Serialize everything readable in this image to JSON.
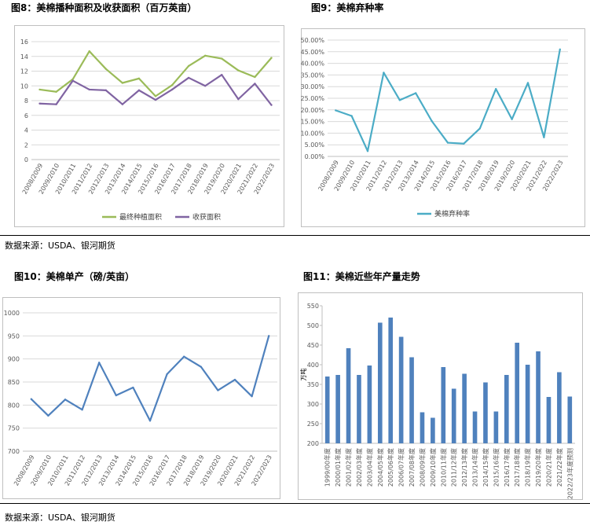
{
  "titles": {
    "fig8": "图8：美棉播种面积及收获面积（百万英亩）",
    "fig9": "图9：美棉弃种率",
    "fig10": "图10：美棉单产（磅/英亩）",
    "fig11": "图11：美棉近些年产量走势"
  },
  "sources": {
    "top": "数据来源：USDA、银河期货",
    "bottom": "数据来源：USDA、银河期货"
  },
  "chart_data": [
    {
      "id": "fig8",
      "type": "line",
      "categories": [
        "2008/2009",
        "2009/2010",
        "2010/2011",
        "2011/2012",
        "2012/2013",
        "2013/2014",
        "2014/2015",
        "2015/2016",
        "2016/2017",
        "2017/2018",
        "2018/2019",
        "2019/2020",
        "2020/2021",
        "2021/2022",
        "2022/2023"
      ],
      "series": [
        {
          "name": "最终种植面积",
          "color": "#9bbb59",
          "values": [
            9.5,
            9.2,
            10.9,
            14.7,
            12.3,
            10.4,
            11.0,
            8.6,
            10.1,
            12.7,
            14.1,
            13.7,
            12.1,
            11.2,
            13.8
          ]
        },
        {
          "name": "收获面积",
          "color": "#8064a2",
          "values": [
            7.6,
            7.5,
            10.7,
            9.5,
            9.4,
            7.5,
            9.4,
            8.1,
            9.5,
            11.1,
            10.0,
            11.5,
            8.2,
            10.3,
            7.4
          ]
        }
      ],
      "ylim": [
        0,
        16
      ],
      "yticks": [
        "0",
        "2",
        "4",
        "6",
        "8",
        "10",
        "12",
        "14",
        "16"
      ],
      "legend": "bottom"
    },
    {
      "id": "fig9",
      "type": "line",
      "categories": [
        "2008/2009",
        "2009/2010",
        "2010/2011",
        "2011/2012",
        "2012/2013",
        "2013/2014",
        "2014/2015",
        "2015/2016",
        "2016/2017",
        "2017/2018",
        "2018/2019",
        "2019/2020",
        "2020/2021",
        "2021/2022",
        "2022/2023"
      ],
      "series": [
        {
          "name": "美棉弃种率",
          "color": "#4bacc6",
          "values": [
            19.8,
            17.4,
            2.3,
            36.0,
            24.2,
            27.2,
            15.2,
            5.9,
            5.5,
            12.0,
            29.0,
            16.0,
            31.6,
            8.2,
            46.0
          ]
        }
      ],
      "ylim": [
        0,
        50
      ],
      "yticks": [
        "0.00%",
        "5.00%",
        "10.00%",
        "15.00%",
        "20.00%",
        "25.00%",
        "30.00%",
        "35.00%",
        "40.00%",
        "45.00%",
        "50.00%"
      ],
      "legend": "bottom"
    },
    {
      "id": "fig10",
      "type": "line",
      "categories": [
        "2008/2009",
        "2009/2010",
        "2010/2011",
        "2011/2012",
        "2012/2013",
        "2013/2014",
        "2014/2015",
        "2015/2016",
        "2016/2017",
        "2017/2018",
        "2018/2019",
        "2019/2020",
        "2020/2021",
        "2021/2022",
        "2022/2023"
      ],
      "series": [
        {
          "color": "#4f81bd",
          "values": [
            813,
            777,
            812,
            790,
            892,
            821,
            838,
            766,
            867,
            905,
            883,
            832,
            855,
            819,
            950
          ]
        }
      ],
      "ylim": [
        700,
        1000
      ],
      "yticks": [
        "700",
        "750",
        "800",
        "850",
        "900",
        "950",
        "1000"
      ],
      "legend": "none"
    },
    {
      "id": "fig11",
      "type": "bar",
      "categories": [
        "1999/00年度",
        "2000/01年度",
        "2001/02年度",
        "2002/03年度",
        "2003/04年度",
        "2004/05年度",
        "2005/06年度",
        "2006/07年度",
        "2007/08年度",
        "2008/09年度",
        "2009/10年度",
        "2010/11年度",
        "2011/12年度",
        "2012/13年度",
        "2013/14年度",
        "2014/15年度",
        "2015/16年度",
        "2016/17年度",
        "2017/18年度",
        "2018/19年度",
        "2019/20年度",
        "2020/21年度",
        "2021/22年度",
        "2022/23年度预测"
      ],
      "series": [
        {
          "color": "#4f81bd",
          "values": [
            370,
            374,
            442,
            374,
            398,
            507,
            520,
            471,
            419,
            279,
            265,
            394,
            339,
            377,
            281,
            355,
            281,
            374,
            456,
            400,
            434,
            318,
            381,
            319
          ]
        }
      ],
      "ylim": [
        200,
        550
      ],
      "yticks": [
        "200",
        "250",
        "300",
        "350",
        "400",
        "450",
        "500",
        "550"
      ],
      "ylabel": "万吨",
      "legend": "none"
    }
  ]
}
